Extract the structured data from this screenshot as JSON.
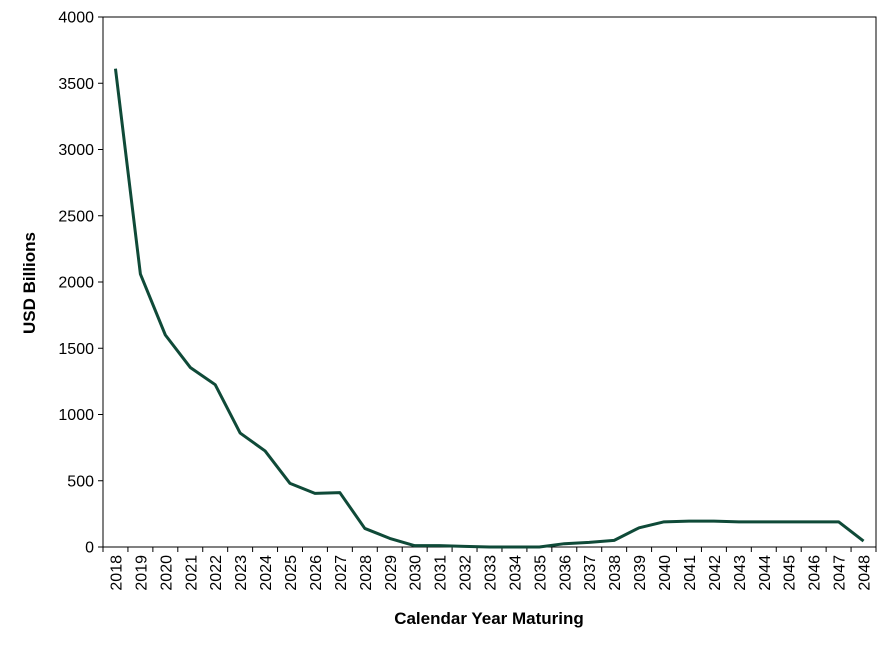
{
  "chart_data": {
    "type": "line",
    "title": "",
    "xlabel": "Calendar Year Maturing",
    "ylabel": "USD Billions",
    "ylim": [
      0,
      4000
    ],
    "yticks": [
      0,
      500,
      1000,
      1500,
      2000,
      2500,
      3000,
      3500,
      4000
    ],
    "grid": false,
    "legend": "none",
    "categories": [
      "2018",
      "2019",
      "2020",
      "2021",
      "2022",
      "2023",
      "2024",
      "2025",
      "2026",
      "2027",
      "2028",
      "2029",
      "2030",
      "2031",
      "2032",
      "2033",
      "2034",
      "2035",
      "2036",
      "2037",
      "2038",
      "2039",
      "2040",
      "2041",
      "2042",
      "2043",
      "2044",
      "2045",
      "2046",
      "2047",
      "2048"
    ],
    "series": [
      {
        "color": "#0f4a38",
        "values": [
          3610,
          2060,
          1600,
          1355,
          1225,
          860,
          725,
          480,
          405,
          410,
          140,
          65,
          10,
          10,
          5,
          0,
          0,
          0,
          25,
          35,
          50,
          145,
          190,
          195,
          195,
          190,
          190,
          190,
          190,
          190,
          45
        ]
      }
    ]
  }
}
